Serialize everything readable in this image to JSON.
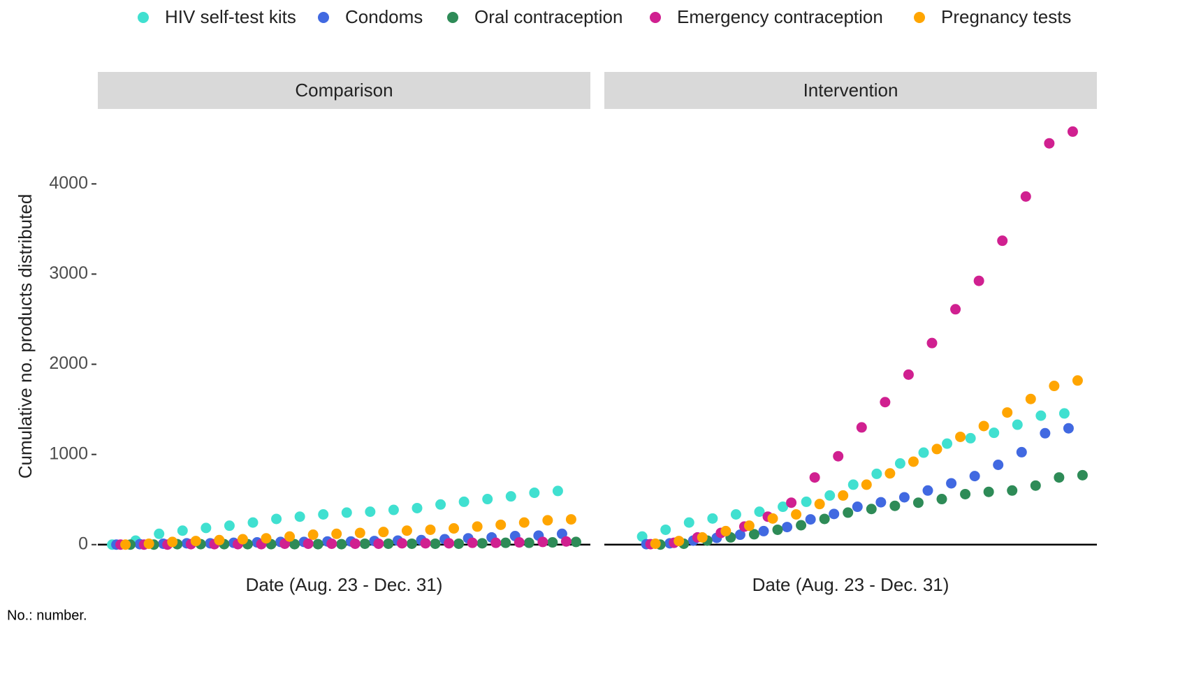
{
  "chart_data": [
    {
      "type": "scatter",
      "title": "Comparison",
      "xlabel": "Date (Aug. 23 - Dec. 31)",
      "ylabel": "Cumulative no. products distributed",
      "x": [
        1,
        2,
        3,
        4,
        5,
        6,
        7,
        8,
        9,
        10,
        11,
        12,
        13,
        14,
        15,
        16,
        17,
        18,
        19,
        20
      ],
      "xlim": [
        0,
        21
      ],
      "ylim": [
        -180,
        4800
      ],
      "yticks": [
        0,
        1000,
        2000,
        3000,
        4000
      ],
      "legend": "top",
      "series": [
        {
          "name": "HIV self-test kits",
          "color": "#40E0D0",
          "values": [
            0,
            45,
            120,
            155,
            185,
            210,
            245,
            285,
            310,
            335,
            355,
            365,
            385,
            405,
            445,
            475,
            505,
            535,
            575,
            595
          ]
        },
        {
          "name": "Condoms",
          "color": "#4169E1",
          "values": [
            0,
            5,
            10,
            15,
            15,
            20,
            25,
            30,
            30,
            35,
            35,
            40,
            45,
            50,
            60,
            70,
            80,
            95,
            100,
            120
          ]
        },
        {
          "name": "Oral contraception",
          "color": "#2E8B57",
          "values": [
            0,
            0,
            5,
            5,
            5,
            5,
            5,
            5,
            5,
            5,
            10,
            10,
            10,
            10,
            10,
            15,
            20,
            20,
            25,
            30
          ]
        },
        {
          "name": "Emergency contraception",
          "color": "#D02090",
          "values": [
            0,
            0,
            0,
            5,
            5,
            5,
            5,
            10,
            10,
            10,
            10,
            10,
            15,
            15,
            15,
            20,
            20,
            25,
            30,
            35
          ]
        },
        {
          "name": "Pregnancy tests",
          "color": "#FFA500",
          "values": [
            0,
            10,
            30,
            40,
            50,
            60,
            70,
            90,
            110,
            120,
            130,
            140,
            155,
            165,
            180,
            200,
            220,
            245,
            270,
            280
          ]
        }
      ]
    },
    {
      "type": "scatter",
      "title": "Intervention",
      "xlabel": "Date (Aug. 23 - Dec. 31)",
      "x": [
        2,
        3,
        4,
        5,
        6,
        7,
        8,
        9,
        10,
        11,
        12,
        13,
        14,
        15,
        16,
        17,
        18,
        19,
        20
      ],
      "xlim": [
        0,
        21
      ],
      "ylim": [
        -180,
        4800
      ],
      "yticks": [
        0,
        1000,
        2000,
        3000,
        4000
      ],
      "series": [
        {
          "name": "HIV self-test kits",
          "color": "#40E0D0",
          "values": [
            90,
            165,
            245,
            290,
            335,
            365,
            420,
            475,
            545,
            665,
            785,
            900,
            1020,
            1120,
            1180,
            1240,
            1330,
            1430,
            1455
          ]
        },
        {
          "name": "Condoms",
          "color": "#4169E1",
          "values": [
            5,
            15,
            45,
            75,
            110,
            150,
            195,
            280,
            340,
            420,
            470,
            525,
            600,
            680,
            760,
            885,
            1025,
            1235,
            1290
          ]
        },
        {
          "name": "Oral contraception",
          "color": "#2E8B57",
          "values": [
            0,
            10,
            45,
            80,
            115,
            165,
            215,
            285,
            355,
            395,
            430,
            465,
            505,
            560,
            585,
            600,
            655,
            745,
            770
          ]
        },
        {
          "name": "Emergency contraception",
          "color": "#D02090",
          "values": [
            5,
            20,
            80,
            130,
            200,
            310,
            465,
            745,
            980,
            1300,
            1580,
            1885,
            2235,
            2610,
            2925,
            3370,
            3860,
            4450,
            4580
          ]
        },
        {
          "name": "Pregnancy tests",
          "color": "#FFA500",
          "values": [
            10,
            40,
            80,
            150,
            210,
            290,
            335,
            450,
            545,
            665,
            790,
            920,
            1060,
            1195,
            1315,
            1465,
            1615,
            1760,
            1820
          ]
        }
      ]
    }
  ],
  "note": "No.: number."
}
